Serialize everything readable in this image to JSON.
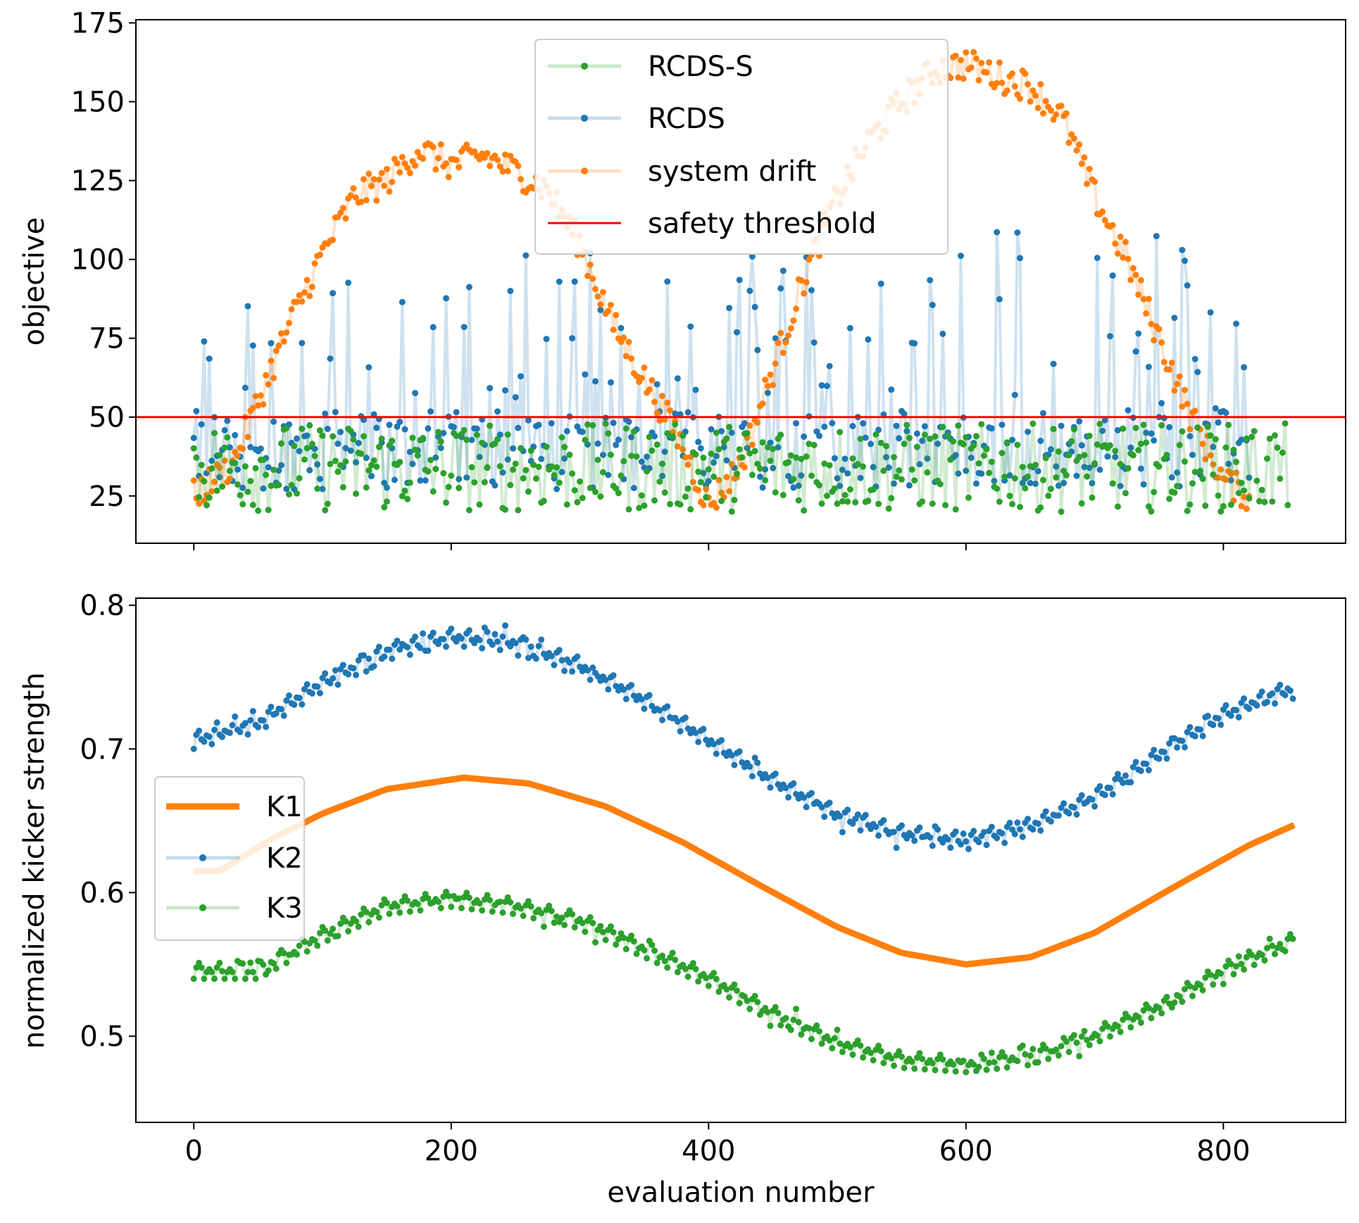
{
  "colors": {
    "blue": "#1f77b4",
    "orange": "#ff7f0e",
    "green": "#2ca02c",
    "red": "#ff0000"
  },
  "chart_data": [
    {
      "id": "objective",
      "type": "line",
      "title": "",
      "xlabel": "",
      "ylabel": "objective",
      "xlim": [
        -45,
        895
      ],
      "ylim": [
        10,
        176
      ],
      "xticks": [
        0,
        200,
        400,
        600,
        800
      ],
      "yticks": [
        25,
        50,
        75,
        100,
        125,
        150,
        175
      ],
      "ytick_labels": [
        "25",
        "50",
        "75",
        "100",
        "125",
        "150",
        "175"
      ],
      "legend_position": "top-center",
      "series": [
        {
          "name": "RCDS-S",
          "color": "#2ca02c",
          "description": "noisy, mostly 20-48, spans evaluations 0-850",
          "samples": {
            "x": [
              0,
              50,
              100,
              150,
              200,
              250,
              300,
              350,
              400,
              450,
              500,
              550,
              600,
              650,
              700,
              750,
              800,
              850
            ],
            "y": [
              30,
              36,
              34,
              32,
              35,
              37,
              35,
              34,
              35,
              36,
              34,
              35,
              36,
              35,
              33,
              35,
              34,
              33
            ]
          }
        },
        {
          "name": "RCDS",
          "color": "#1f77b4",
          "description": "noisy with spikes up to ~112, spans evaluations 0-820",
          "samples": {
            "x": [
              0,
              50,
              100,
              150,
              200,
              250,
              300,
              350,
              400,
              450,
              500,
              550,
              600,
              650,
              700,
              750,
              800
            ],
            "y": [
              40,
              48,
              45,
              44,
              42,
              40,
              42,
              45,
              46,
              44,
              43,
              45,
              47,
              46,
              45,
              44,
              40
            ]
          }
        },
        {
          "name": "system drift",
          "color": "#ff7f0e",
          "description": "drift objective, evaluations 0-820",
          "samples": {
            "x": [
              0,
              30,
              50,
              75,
              100,
              125,
              150,
              175,
              200,
              225,
              250,
              275,
              300,
              325,
              350,
              375,
              400,
              425,
              450,
              475,
              500,
              525,
              550,
              575,
              600,
              625,
              650,
              675,
              700,
              725,
              750,
              775,
              800,
              820
            ],
            "y": [
              25,
              35,
              55,
              80,
              102,
              120,
              125,
              135,
              130,
              133,
              128,
              122,
              105,
              80,
              62,
              45,
              22,
              35,
              65,
              95,
              120,
              138,
              150,
              160,
              162,
              158,
              155,
              145,
              120,
              100,
              75,
              50,
              30,
              25
            ]
          }
        },
        {
          "name": "safety threshold",
          "color": "#ff0000",
          "value": 50
        }
      ]
    },
    {
      "id": "kicker",
      "type": "line",
      "title": "",
      "xlabel": "evaluation number",
      "ylabel": "normalized kicker strength",
      "xlim": [
        -45,
        895
      ],
      "ylim": [
        0.44,
        0.805
      ],
      "xticks": [
        0,
        200,
        400,
        600,
        800
      ],
      "xtick_labels": [
        "0",
        "200",
        "400",
        "600",
        "800"
      ],
      "yticks": [
        0.5,
        0.6,
        0.7,
        0.8
      ],
      "ytick_labels": [
        "0.5",
        "0.6",
        "0.7",
        "0.8"
      ],
      "legend_position": "center-left",
      "series": [
        {
          "name": "K1",
          "color": "#ff7f0e",
          "samples": {
            "x": [
              0,
              20,
              60,
              100,
              150,
              210,
              260,
              320,
              380,
              440,
              500,
              550,
              600,
              650,
              700,
              760,
              820,
              855
            ],
            "y": [
              0.615,
              0.615,
              0.637,
              0.655,
              0.672,
              0.68,
              0.676,
              0.66,
              0.635,
              0.605,
              0.576,
              0.558,
              0.55,
              0.555,
              0.572,
              0.603,
              0.633,
              0.647
            ]
          }
        },
        {
          "name": "K2",
          "color": "#1f77b4",
          "samples": {
            "x": [
              0,
              50,
              100,
              150,
              200,
              250,
              300,
              350,
              400,
              450,
              500,
              550,
              600,
              650,
              700,
              750,
              800,
              850
            ],
            "y": [
              0.7,
              0.712,
              0.74,
              0.762,
              0.772,
              0.768,
              0.752,
              0.728,
              0.7,
              0.672,
              0.648,
              0.635,
              0.63,
              0.64,
              0.66,
              0.69,
              0.718,
              0.735
            ]
          }
        },
        {
          "name": "K3",
          "color": "#2ca02c",
          "samples": {
            "x": [
              0,
              50,
              100,
              150,
              200,
              250,
              300,
              350,
              400,
              450,
              500,
              550,
              600,
              650,
              700,
              750,
              800,
              850
            ],
            "y": [
              0.54,
              0.54,
              0.565,
              0.585,
              0.59,
              0.585,
              0.575,
              0.555,
              0.535,
              0.51,
              0.49,
              0.478,
              0.475,
              0.48,
              0.495,
              0.515,
              0.54,
              0.56
            ]
          }
        }
      ]
    }
  ]
}
